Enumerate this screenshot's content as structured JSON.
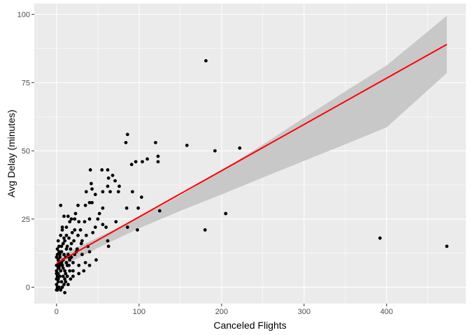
{
  "chart_data": {
    "type": "scatter",
    "xlabel": "Canceled Flights",
    "ylabel": "Avg Delay (minutes)",
    "xlim": [
      -27,
      496
    ],
    "ylim": [
      -6,
      104
    ],
    "x_ticks": [
      0,
      100,
      200,
      300,
      400
    ],
    "y_ticks": [
      0,
      25,
      50,
      75,
      100
    ],
    "grid": true,
    "colors": {
      "panel": "#ebebeb",
      "grid_major": "#ffffff",
      "points": "#000000",
      "fit_line": "#ff0000",
      "ribbon": "#c8c8c8"
    },
    "points": [
      [
        181,
        83
      ],
      [
        86,
        56
      ],
      [
        84,
        53
      ],
      [
        120,
        53
      ],
      [
        158,
        52
      ],
      [
        192,
        50
      ],
      [
        222,
        51
      ],
      [
        123,
        48
      ],
      [
        110,
        47
      ],
      [
        123,
        46
      ],
      [
        96,
        46
      ],
      [
        104,
        46
      ],
      [
        91,
        45
      ],
      [
        55,
        43
      ],
      [
        62,
        43
      ],
      [
        41,
        43
      ],
      [
        68,
        41
      ],
      [
        63,
        40
      ],
      [
        71,
        39
      ],
      [
        76,
        37
      ],
      [
        42,
        38
      ],
      [
        43,
        36
      ],
      [
        62,
        37
      ],
      [
        75,
        35
      ],
      [
        56,
        35
      ],
      [
        65,
        35
      ],
      [
        92,
        35
      ],
      [
        36,
        35
      ],
      [
        47,
        34
      ],
      [
        103,
        33
      ],
      [
        40,
        31
      ],
      [
        35,
        30
      ],
      [
        43,
        31
      ],
      [
        5,
        30
      ],
      [
        26,
        30
      ],
      [
        56,
        29
      ],
      [
        85,
        29
      ],
      [
        99,
        29
      ],
      [
        125,
        28
      ],
      [
        205,
        27
      ],
      [
        23,
        27
      ],
      [
        14,
        26
      ],
      [
        9,
        26
      ],
      [
        18,
        25
      ],
      [
        16,
        24
      ],
      [
        22,
        25
      ],
      [
        34,
        24
      ],
      [
        40,
        25
      ],
      [
        50,
        25
      ],
      [
        56,
        23
      ],
      [
        27,
        24
      ],
      [
        72,
        24
      ],
      [
        47,
        22
      ],
      [
        60,
        22
      ],
      [
        86,
        22
      ],
      [
        180,
        21
      ],
      [
        98,
        21
      ],
      [
        12,
        22
      ],
      [
        7,
        21
      ],
      [
        29,
        21
      ],
      [
        19,
        20
      ],
      [
        26,
        19
      ],
      [
        36,
        19
      ],
      [
        15,
        18
      ],
      [
        10,
        17
      ],
      [
        21,
        17
      ],
      [
        62,
        17
      ],
      [
        2,
        17
      ],
      [
        8,
        16
      ],
      [
        63,
        15
      ],
      [
        30,
        16
      ],
      [
        13,
        15
      ],
      [
        6,
        15
      ],
      [
        17,
        14
      ],
      [
        25,
        14
      ],
      [
        40,
        13
      ],
      [
        3,
        13
      ],
      [
        9,
        12
      ],
      [
        14,
        12
      ],
      [
        22,
        12
      ],
      [
        31,
        12
      ],
      [
        4,
        11
      ],
      [
        11,
        11
      ],
      [
        18,
        11
      ],
      [
        8,
        10
      ],
      [
        48,
        10
      ],
      [
        392,
        18
      ],
      [
        473,
        15
      ],
      [
        2,
        10
      ],
      [
        5,
        9
      ],
      [
        12,
        9
      ],
      [
        20,
        9
      ],
      [
        35,
        9
      ],
      [
        1,
        8
      ],
      [
        3,
        7
      ],
      [
        7,
        8
      ],
      [
        15,
        8
      ],
      [
        27,
        8
      ],
      [
        40,
        8
      ],
      [
        0,
        6
      ],
      [
        2,
        5
      ],
      [
        5,
        6
      ],
      [
        10,
        6
      ],
      [
        20,
        6
      ],
      [
        33,
        6
      ],
      [
        1,
        4
      ],
      [
        4,
        4
      ],
      [
        8,
        4
      ],
      [
        13,
        4
      ],
      [
        2,
        3
      ],
      [
        6,
        2
      ],
      [
        11,
        2
      ],
      [
        0,
        1
      ],
      [
        3,
        0
      ],
      [
        7,
        0
      ],
      [
        1,
        -1
      ],
      [
        5,
        -1
      ],
      [
        9,
        1
      ],
      [
        14,
        1
      ],
      [
        0,
        -1
      ],
      [
        2,
        2
      ],
      [
        4,
        12
      ],
      [
        0,
        11
      ],
      [
        1,
        14
      ],
      [
        6,
        13
      ],
      [
        3,
        9
      ],
      [
        16,
        10
      ],
      [
        24,
        13
      ],
      [
        12,
        19
      ],
      [
        27,
        5
      ],
      [
        0,
        5
      ],
      [
        10,
        -2
      ],
      [
        17,
        3
      ],
      [
        20,
        4
      ],
      [
        31,
        17
      ],
      [
        44,
        20
      ],
      [
        38,
        15
      ],
      [
        52,
        27
      ],
      [
        1,
        0
      ],
      [
        0,
        3
      ],
      [
        2,
        7
      ],
      [
        4,
        8
      ],
      [
        6,
        9
      ],
      [
        8,
        7
      ],
      [
        11,
        5
      ],
      [
        13,
        8
      ],
      [
        15,
        11
      ],
      [
        1,
        12
      ],
      [
        3,
        15
      ],
      [
        5,
        19
      ],
      [
        7,
        22
      ],
      [
        9,
        18
      ],
      [
        12,
        14
      ],
      [
        18,
        16
      ],
      [
        22,
        21
      ],
      [
        0,
        8
      ],
      [
        2,
        10
      ],
      [
        16,
        6
      ],
      [
        10,
        3
      ]
    ],
    "fit_line": {
      "x": [
        0,
        473
      ],
      "y": [
        8.8,
        89
      ]
    },
    "ribbon": {
      "x": [
        0,
        50,
        100,
        150,
        200,
        250,
        300,
        350,
        400,
        473
      ],
      "upper": [
        11,
        18.2,
        25.5,
        33.6,
        42.8,
        52.3,
        62.1,
        71.8,
        81.3,
        99.5
      ],
      "lower": [
        6.6,
        14.4,
        21.6,
        28,
        34,
        40.2,
        46.3,
        52.4,
        58.6,
        78.5
      ]
    }
  }
}
